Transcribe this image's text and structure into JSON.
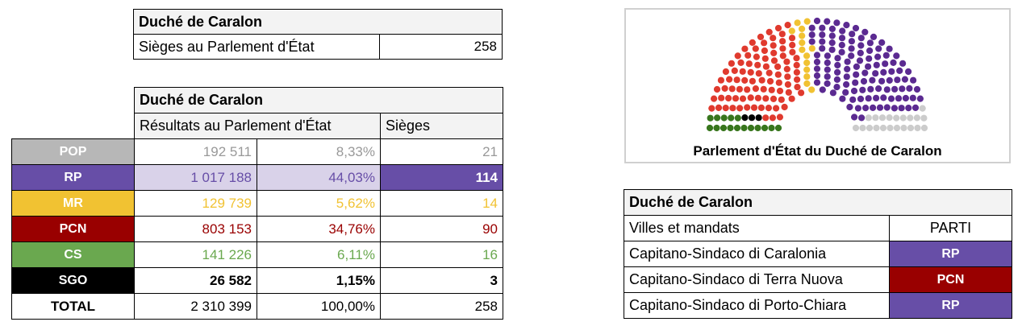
{
  "seats_table": {
    "title": "Duché de Caralon",
    "label": "Sièges au Parlement d'État",
    "value": "258"
  },
  "results_table": {
    "title": "Duché de Caralon",
    "subtitle": "Résultats au Parlement d'État",
    "seats_header": "Sièges",
    "rows": [
      {
        "party": "POP",
        "votes": "192 511",
        "percent": "8,33%",
        "seats": "21",
        "color": "#b7b7b7",
        "text_color": "#999999",
        "bold": false
      },
      {
        "party": "RP",
        "votes": "1 017 188",
        "percent": "44,03%",
        "seats": "114",
        "color": "#674ea7",
        "text_color": "#674ea7",
        "bold": false
      },
      {
        "party": "MR",
        "votes": "129 739",
        "percent": "5,62%",
        "seats": "14",
        "color": "#f1c232",
        "text_color": "#f1c232",
        "bold": false
      },
      {
        "party": "PCN",
        "votes": "803 153",
        "percent": "34,76%",
        "seats": "90",
        "color": "#990000",
        "text_color": "#990000",
        "bold": false
      },
      {
        "party": "CS",
        "votes": "141 226",
        "percent": "6,11%",
        "seats": "16",
        "color": "#6aa84f",
        "text_color": "#6aa84f",
        "bold": false
      },
      {
        "party": "SGO",
        "votes": "26 582",
        "percent": "1,15%",
        "seats": "3",
        "color": "#000000",
        "text_color": "#000000",
        "bold": true
      }
    ],
    "total": {
      "label": "TOTAL",
      "votes": "2 310 399",
      "percent": "100,00%",
      "seats": "258"
    }
  },
  "parliament": {
    "caption": "Parlement d'État du Duché de Caralon",
    "groups": [
      {
        "party": "CS",
        "seats": 16,
        "color": "#38761d"
      },
      {
        "party": "SGO",
        "seats": 3,
        "color": "#000000"
      },
      {
        "party": "PCN",
        "seats": 90,
        "color": "#e03a2e"
      },
      {
        "party": "MR",
        "seats": 14,
        "color": "#f1c232"
      },
      {
        "party": "RP",
        "seats": 114,
        "color": "#5b2a91"
      },
      {
        "party": "POP",
        "seats": 21,
        "color": "#cccccc"
      }
    ]
  },
  "mandates_table": {
    "title": "Duché de Caralon",
    "col_label": "Villes et mandats",
    "col_party": "PARTI",
    "rows": [
      {
        "label": "Capitano-Sindaco di Caralonia",
        "party": "RP",
        "color": "#674ea7"
      },
      {
        "label": "Capitano-Sindaco di Terra Nuova",
        "party": "PCN",
        "color": "#990000"
      },
      {
        "label": "Capitano-Sindaco di Porto-Chiara",
        "party": "RP",
        "color": "#674ea7"
      }
    ]
  }
}
